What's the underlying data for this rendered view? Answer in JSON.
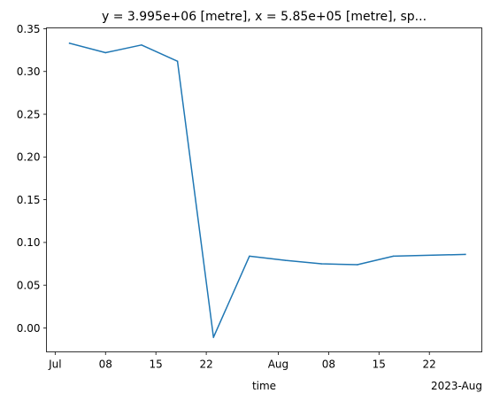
{
  "chart_data": {
    "type": "line",
    "title": "y = 3.995e+06 [metre], x = 5.85e+05 [metre], sp...",
    "xlabel": "time",
    "ylabel": "",
    "x_offset_label": "2023-Aug",
    "grid": false,
    "legend": "none",
    "ylim": [
      -0.028,
      0.351
    ],
    "xlim": [
      "2023-06-29T19:00",
      "2023-08-29T07:00"
    ],
    "x_ticks": [
      {
        "date": "2023-07-01",
        "label": "Jul"
      },
      {
        "date": "2023-07-08",
        "label": "08"
      },
      {
        "date": "2023-07-15",
        "label": "15"
      },
      {
        "date": "2023-07-22",
        "label": "22"
      },
      {
        "date": "2023-08-01",
        "label": "Aug"
      },
      {
        "date": "2023-08-08",
        "label": "08"
      },
      {
        "date": "2023-08-15",
        "label": "15"
      },
      {
        "date": "2023-08-22",
        "label": "22"
      }
    ],
    "y_ticks": [
      {
        "value": 0.35,
        "label": "0.35"
      },
      {
        "value": 0.3,
        "label": "0.30"
      },
      {
        "value": 0.25,
        "label": "0.25"
      },
      {
        "value": 0.2,
        "label": "0.20"
      },
      {
        "value": 0.15,
        "label": "0.15"
      },
      {
        "value": 0.1,
        "label": "0.10"
      },
      {
        "value": 0.05,
        "label": "0.05"
      },
      {
        "value": 0.0,
        "label": "0.00"
      }
    ],
    "series": [
      {
        "color": "#1f77b4",
        "points": [
          {
            "x": "2023-07-03",
            "y": 0.333
          },
          {
            "x": "2023-07-08",
            "y": 0.322
          },
          {
            "x": "2023-07-13",
            "y": 0.331
          },
          {
            "x": "2023-07-18",
            "y": 0.312
          },
          {
            "x": "2023-07-23",
            "y": -0.011
          },
          {
            "x": "2023-07-28",
            "y": 0.084
          },
          {
            "x": "2023-08-02",
            "y": 0.079
          },
          {
            "x": "2023-08-07",
            "y": 0.075
          },
          {
            "x": "2023-08-12",
            "y": 0.074
          },
          {
            "x": "2023-08-17",
            "y": 0.084
          },
          {
            "x": "2023-08-27",
            "y": 0.086
          }
        ]
      }
    ]
  }
}
